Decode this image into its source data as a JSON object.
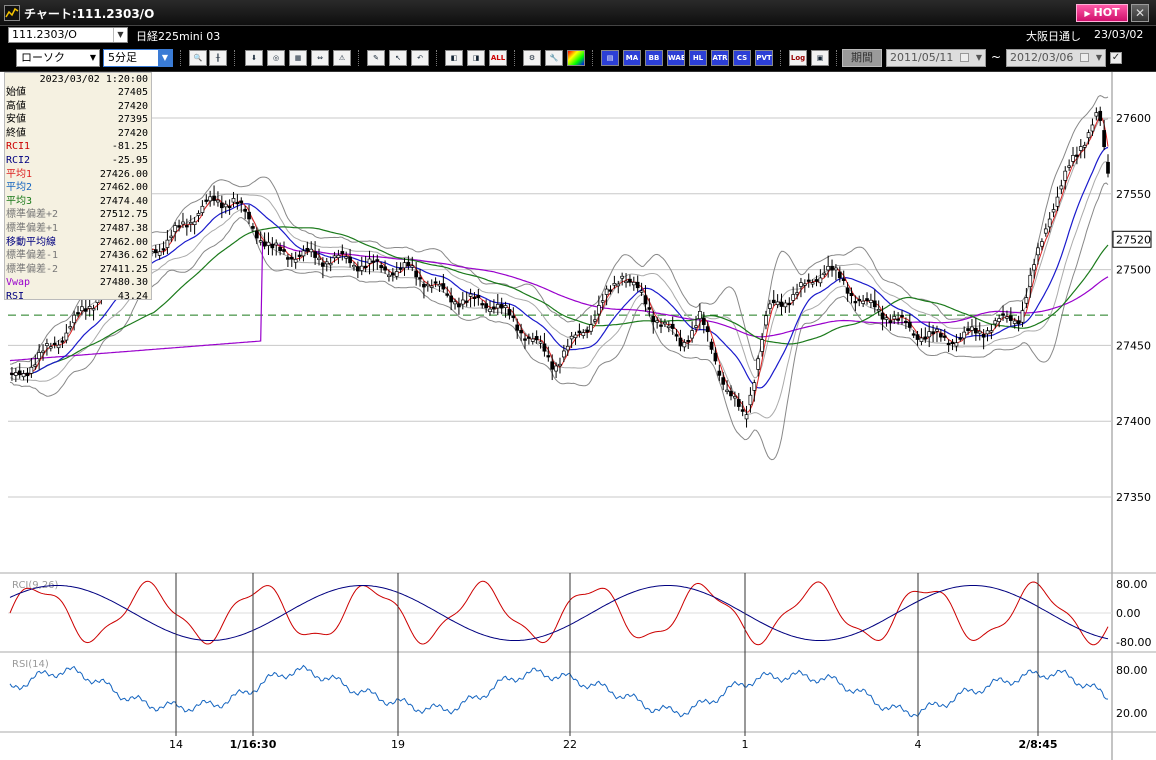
{
  "window": {
    "title": "チャート:111.2303/O",
    "hot_label": "HOT",
    "close": "✕"
  },
  "header": {
    "symbol": "111.2303/O",
    "instrument": "日経225mini 03",
    "exchange": "大阪日通し",
    "date": "23/03/02"
  },
  "toolbar": {
    "chart_type": "ローソク",
    "interval": "5分足",
    "buttons": [
      "MA",
      "BB",
      "WAE",
      "HL",
      "ATR",
      "CS",
      "PVT",
      "Log"
    ],
    "all_label": "ALL",
    "period_label": "期間",
    "date_from": "2011/05/11",
    "date_to": "2012/03/06",
    "tilde": "~"
  },
  "info": {
    "datetime": "2023/03/02  1:20:00",
    "rows": [
      {
        "label": "始値",
        "value": "27405",
        "color": "#000000"
      },
      {
        "label": "高値",
        "value": "27420",
        "color": "#000000"
      },
      {
        "label": "安値",
        "value": "27395",
        "color": "#000000"
      },
      {
        "label": "終値",
        "value": "27420",
        "color": "#000000"
      },
      {
        "label": "RCI1",
        "value": "-81.25",
        "color": "#cc0000"
      },
      {
        "label": "RCI2",
        "value": "-25.95",
        "color": "#000080"
      },
      {
        "label": "平均1",
        "value": "27426.00",
        "color": "#dd2222"
      },
      {
        "label": "平均2",
        "value": "27462.00",
        "color": "#1565c0"
      },
      {
        "label": "平均3",
        "value": "27474.40",
        "color": "#1b7a1b"
      },
      {
        "label": "標準偏差+2",
        "value": "27512.75",
        "color": "#777777"
      },
      {
        "label": "標準偏差+1",
        "value": "27487.38",
        "color": "#777777"
      },
      {
        "label": "移動平均線",
        "value": "27462.00",
        "color": "#000080"
      },
      {
        "label": "標準偏差-1",
        "value": "27436.62",
        "color": "#777777"
      },
      {
        "label": "標準偏差-2",
        "value": "27411.25",
        "color": "#777777"
      },
      {
        "label": "Vwap",
        "value": "27480.30",
        "color": "#9900cc"
      },
      {
        "label": "RSI",
        "value": "43.24",
        "color": "#000080"
      }
    ]
  },
  "chart_data": {
    "type": "line",
    "price_axis": {
      "ticks": [
        27600,
        27550,
        27500,
        27450,
        27400,
        27350
      ],
      "ylim": [
        27300,
        27625
      ],
      "current": "27520",
      "dashed_level": 27470
    },
    "x_labels": [
      "14",
      "1/16:30",
      "19",
      "22",
      "1",
      "4",
      "2/8:45"
    ],
    "rci": {
      "label": "RCI(9,26)",
      "ticks": [
        "80.00",
        "0.00",
        "-80.00"
      ]
    },
    "rsi": {
      "label": "RSI(14)",
      "ticks": [
        "80.00",
        "20.00"
      ]
    },
    "series": [
      {
        "name": "平均1",
        "color": "#dd2222"
      },
      {
        "name": "平均2",
        "color": "#1a1acc"
      },
      {
        "name": "平均3",
        "color": "#1b7a1b"
      },
      {
        "name": "Vwap",
        "color": "#9900cc"
      }
    ]
  }
}
